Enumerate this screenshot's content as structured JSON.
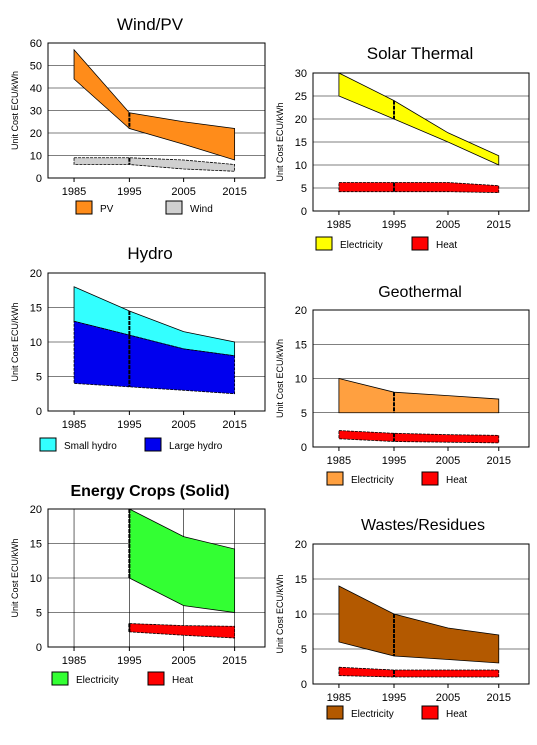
{
  "chart_data": [
    {
      "type": "area",
      "title": "Wind/PV",
      "ylabel": "Unit Cost ECU/kWh",
      "categories": [
        "1985",
        "1995",
        "2005",
        "2015"
      ],
      "ylim": [
        0,
        60
      ],
      "yticks": [
        0,
        10,
        20,
        30,
        40,
        50,
        60
      ],
      "grid": "horizontal",
      "legend": "bottom",
      "series": [
        {
          "name": "PV",
          "color": "#ff8c1a",
          "high": [
            57,
            29,
            25,
            22
          ],
          "low": [
            44,
            22,
            15,
            8
          ]
        },
        {
          "name": "Wind",
          "color": "#d0d0d0",
          "high": [
            9,
            9,
            8,
            6
          ],
          "low": [
            6,
            6,
            4,
            3
          ]
        }
      ]
    },
    {
      "type": "area",
      "title": "Solar Thermal",
      "ylabel": "Unit Cost ECU/kWh",
      "categories": [
        "1985",
        "1995",
        "2005",
        "2015"
      ],
      "ylim": [
        0,
        30
      ],
      "yticks": [
        0,
        5,
        10,
        15,
        20,
        25,
        30
      ],
      "grid": "horizontal",
      "legend": "bottom",
      "series": [
        {
          "name": "Electricity",
          "color": "#ffff00",
          "high": [
            30,
            24,
            17,
            12
          ],
          "low": [
            25,
            20,
            15,
            10
          ]
        },
        {
          "name": "Heat",
          "color": "#ff0000",
          "high": [
            6.2,
            6.2,
            6.2,
            5.5
          ],
          "low": [
            4.2,
            4.2,
            4.2,
            4
          ]
        }
      ]
    },
    {
      "type": "area",
      "title": "Hydro",
      "ylabel": "Unit Cost ECU/kWh",
      "categories": [
        "1985",
        "1995",
        "2005",
        "2015"
      ],
      "ylim": [
        0,
        20
      ],
      "yticks": [
        0,
        5,
        10,
        15,
        20
      ],
      "grid": "horizontal",
      "legend": "bottom",
      "series": [
        {
          "name": "Small hydro",
          "color": "#33ffff",
          "high": [
            18,
            14.5,
            11.5,
            10
          ],
          "low": [
            13,
            11,
            9,
            8
          ]
        },
        {
          "name": "Large hydro",
          "color": "#0000ee",
          "high": [
            13,
            11,
            9,
            8
          ],
          "low": [
            4,
            3.5,
            3,
            2.5
          ]
        }
      ]
    },
    {
      "type": "area",
      "title": "Geothermal",
      "ylabel": "Unit Cost ECU/kWh",
      "categories": [
        "1985",
        "1995",
        "2005",
        "2015"
      ],
      "ylim": [
        0,
        20
      ],
      "yticks": [
        0,
        5,
        10,
        15,
        20
      ],
      "grid": "horizontal",
      "legend": "bottom",
      "series": [
        {
          "name": "Electricity",
          "color": "#ffa040",
          "high": [
            10,
            8,
            7.5,
            7
          ],
          "low": [
            5,
            5,
            5,
            5
          ]
        },
        {
          "name": "Heat",
          "color": "#ff0000",
          "high": [
            2.4,
            2,
            1.8,
            1.7
          ],
          "low": [
            1.2,
            0.8,
            0.7,
            0.6
          ]
        }
      ]
    },
    {
      "type": "area",
      "title": "Energy Crops (Solid)",
      "ylabel": "Unit Cost ECU/kWh",
      "categories": [
        "1985",
        "1995",
        "2005",
        "2015"
      ],
      "ylim": [
        0,
        20
      ],
      "yticks": [
        0,
        5,
        10,
        15,
        20
      ],
      "grid": "both",
      "legend": "bottom",
      "series": [
        {
          "name": "Electricity",
          "color": "#33ff33",
          "x_index": [
            1,
            2,
            3
          ],
          "high": [
            20,
            16,
            14.2
          ],
          "low": [
            10,
            6,
            5
          ]
        },
        {
          "name": "Heat",
          "color": "#ff0000",
          "x_index": [
            1,
            2,
            3
          ],
          "high": [
            3.4,
            3.1,
            3
          ],
          "low": [
            2.2,
            1.7,
            1.3
          ]
        }
      ]
    },
    {
      "type": "area",
      "title": "Wastes/Residues",
      "ylabel": "Unit Cost ECU/kWh",
      "categories": [
        "1985",
        "1995",
        "2005",
        "2015"
      ],
      "ylim": [
        0,
        20
      ],
      "yticks": [
        0,
        5,
        10,
        15,
        20
      ],
      "grid": "horizontal",
      "legend": "bottom",
      "series": [
        {
          "name": "Electricity",
          "color": "#b35900",
          "high": [
            14,
            10,
            8,
            7
          ],
          "low": [
            6,
            4,
            3.5,
            3
          ]
        },
        {
          "name": "Heat",
          "color": "#ff0000",
          "high": [
            2.4,
            2,
            2,
            2
          ],
          "low": [
            1.2,
            1,
            1,
            1
          ]
        }
      ]
    }
  ]
}
